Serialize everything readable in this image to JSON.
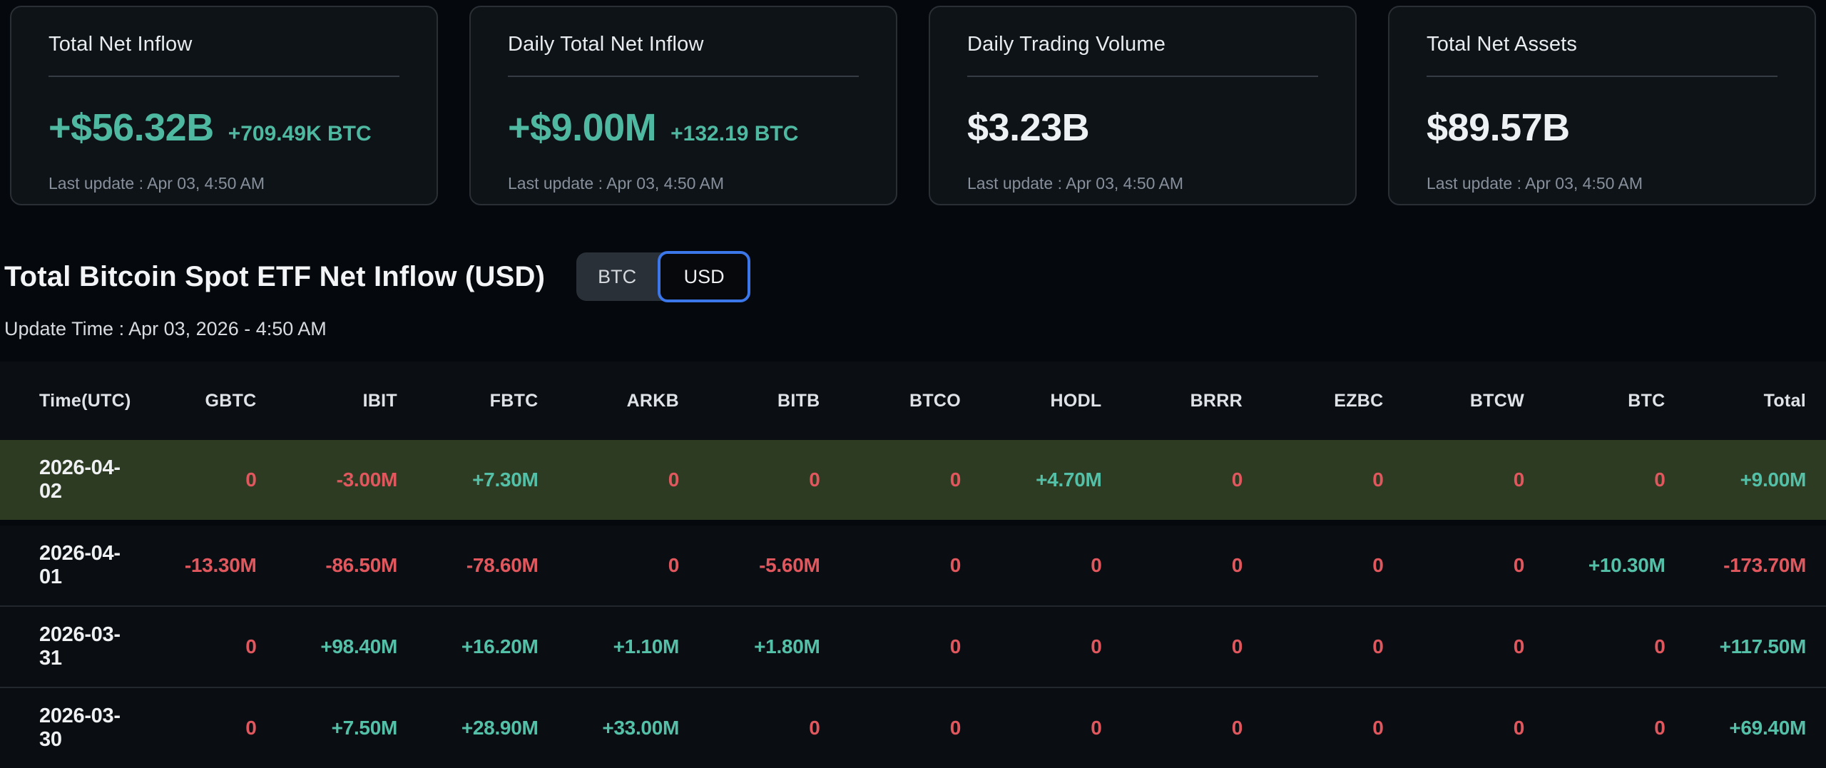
{
  "cards": [
    {
      "title": "Total Net Inflow",
      "value": "+$56.32B",
      "sub": "+709.49K BTC",
      "value_style": "positive",
      "last_update": "Last update : Apr 03, 4:50 AM"
    },
    {
      "title": "Daily Total Net Inflow",
      "value": "+$9.00M",
      "sub": "+132.19 BTC",
      "value_style": "positive",
      "last_update": "Last update : Apr 03, 4:50 AM"
    },
    {
      "title": "Daily Trading Volume",
      "value": "$3.23B",
      "sub": "",
      "value_style": "neutral",
      "last_update": "Last update : Apr 03, 4:50 AM"
    },
    {
      "title": "Total Net Assets",
      "value": "$89.57B",
      "sub": "",
      "value_style": "neutral",
      "last_update": "Last update : Apr 03, 4:50 AM"
    }
  ],
  "section": {
    "title": "Total Bitcoin Spot ETF Net Inflow (USD)",
    "toggle": {
      "options": [
        "BTC",
        "USD"
      ],
      "selected": "USD"
    },
    "update_time": "Update Time : Apr 03, 2026 - 4:50 AM"
  },
  "table": {
    "columns": [
      "Time(UTC)",
      "GBTC",
      "IBIT",
      "FBTC",
      "ARKB",
      "BITB",
      "BTCO",
      "HODL",
      "BRRR",
      "EZBC",
      "BTCW",
      "BTC",
      "Total"
    ],
    "rows": [
      {
        "date": "2026-04-02",
        "highlighted": true,
        "values": [
          "0",
          "-3.00M",
          "+7.30M",
          "0",
          "0",
          "0",
          "+4.70M",
          "0",
          "0",
          "0",
          "0",
          "+9.00M"
        ]
      },
      {
        "date": "2026-04-01",
        "highlighted": false,
        "values": [
          "-13.30M",
          "-86.50M",
          "-78.60M",
          "0",
          "-5.60M",
          "0",
          "0",
          "0",
          "0",
          "0",
          "+10.30M",
          "-173.70M"
        ]
      },
      {
        "date": "2026-03-31",
        "highlighted": false,
        "values": [
          "0",
          "+98.40M",
          "+16.20M",
          "+1.10M",
          "+1.80M",
          "0",
          "0",
          "0",
          "0",
          "0",
          "0",
          "+117.50M"
        ]
      },
      {
        "date": "2026-03-30",
        "highlighted": false,
        "values": [
          "0",
          "+7.50M",
          "+28.90M",
          "+33.00M",
          "0",
          "0",
          "0",
          "0",
          "0",
          "0",
          "0",
          "+69.40M"
        ]
      }
    ]
  },
  "colors": {
    "positive": "#55c0a8",
    "negative": "#e0575e",
    "highlight_row_bg": "#2c3b22",
    "toggle_active_border": "#3b77e8",
    "card_bg": "#0e1318",
    "page_bg": "#05080d"
  }
}
